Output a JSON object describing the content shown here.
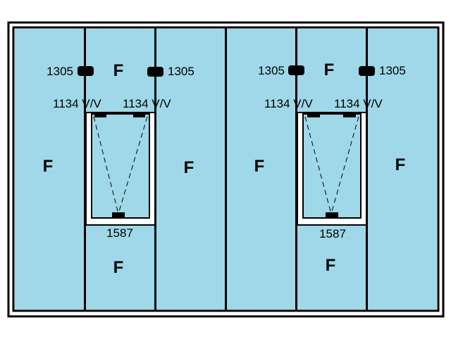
{
  "colors": {
    "glass": "#9fd8e8",
    "frame": "#000000",
    "sash_frame": "#ffffff",
    "background": "#ffffff"
  },
  "units": [
    {
      "panel_labels": {
        "left": "F",
        "top_center": "F",
        "right": "F",
        "bottom_center": "F"
      },
      "hinge_left": "1305",
      "hinge_right": "1305",
      "stay_left": "1134 V/V",
      "stay_right": "1134 V/V",
      "handle": "1587"
    },
    {
      "panel_labels": {
        "left": "F",
        "top_center": "F",
        "right": "F",
        "bottom_center": "F"
      },
      "hinge_left": "1305",
      "hinge_right": "1305",
      "stay_left": "1134 V/V",
      "stay_right": "1134 V/V",
      "handle": "1587"
    }
  ]
}
